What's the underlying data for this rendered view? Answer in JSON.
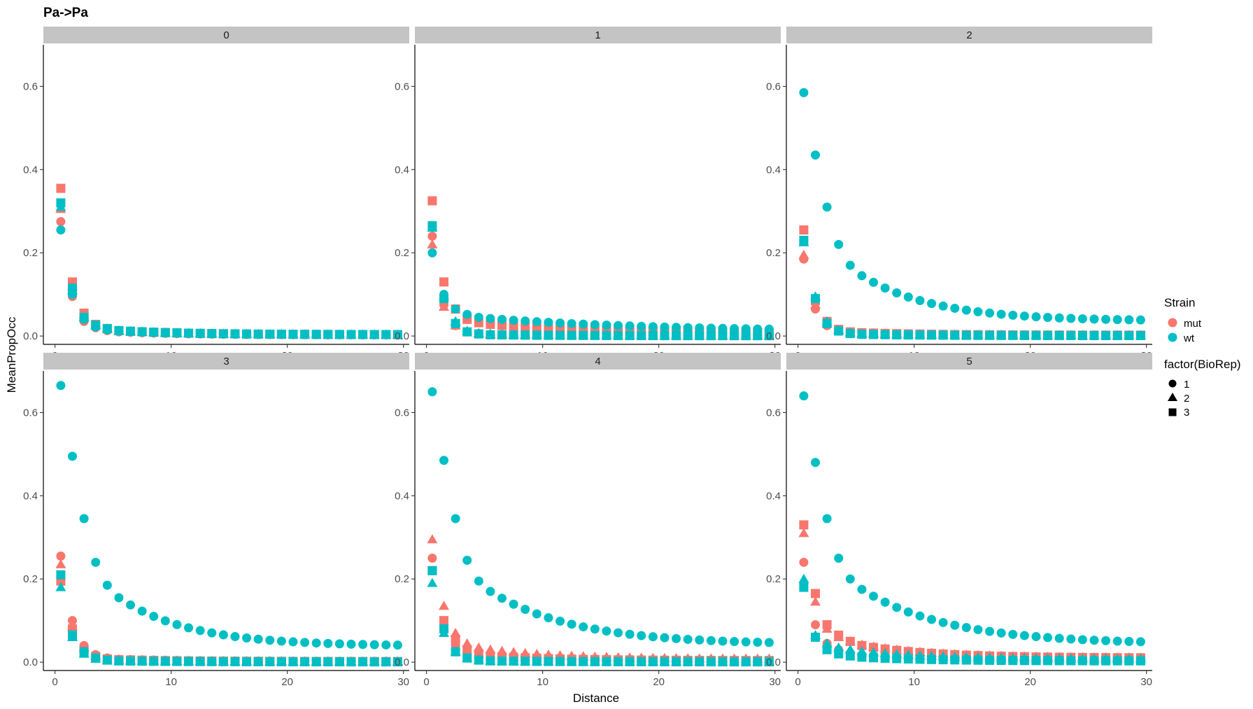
{
  "chart_data": {
    "type": "scatter",
    "title": "Pa->Pa",
    "xlabel": "Distance",
    "ylabel": "MeanPropOcc",
    "xlim": [
      -1,
      30.5
    ],
    "ylim": [
      -0.02,
      0.7
    ],
    "x_ticks": [
      0,
      10,
      20,
      30
    ],
    "y_ticks": [
      0.0,
      0.2,
      0.4,
      0.6
    ],
    "x_tick_labels": [
      "0",
      "10",
      "20",
      "30"
    ],
    "y_tick_labels": [
      "0.0",
      "0.2",
      "0.4",
      "0.6"
    ],
    "facet_layout": {
      "rows": 2,
      "cols": 3
    },
    "grid": false,
    "legend_position": "right",
    "colors": {
      "mut": "#F8766D",
      "wt": "#00BFC4"
    },
    "legends": {
      "color": {
        "title": "Strain",
        "entries": [
          "mut",
          "wt"
        ]
      },
      "shape": {
        "title": "factor(BioRep)",
        "entries": [
          "1",
          "2",
          "3"
        ],
        "shapes": [
          "circle",
          "triangle",
          "square"
        ]
      }
    },
    "x": [
      0.5,
      1.5,
      2.5,
      3.5,
      4.5,
      5.5,
      6.5,
      7.5,
      8.5,
      9.5,
      10.5,
      11.5,
      12.5,
      13.5,
      14.5,
      15.5,
      16.5,
      17.5,
      18.5,
      19.5,
      20.5,
      21.5,
      22.5,
      23.5,
      24.5,
      25.5,
      26.5,
      27.5,
      28.5,
      29.5
    ],
    "facets": [
      {
        "label": "0",
        "series": [
          {
            "strain": "wt",
            "biorep": "1",
            "head": [
              0.255,
              0.1,
              0.04,
              0.022,
              0.015,
              0.012
            ]
          },
          {
            "strain": "wt",
            "biorep": "2",
            "head": [
              0.31,
              0.11,
              0.045,
              0.025,
              0.018,
              0.013
            ]
          },
          {
            "strain": "wt",
            "biorep": "3",
            "head": [
              0.32,
              0.115,
              0.045,
              0.026,
              0.018,
              0.013
            ]
          },
          {
            "strain": "mut",
            "biorep": "1",
            "head": [
              0.275,
              0.095,
              0.035,
              0.02,
              0.013,
              0.01
            ]
          },
          {
            "strain": "mut",
            "biorep": "2",
            "head": [
              0.305,
              0.12,
              0.05,
              0.025,
              0.016,
              0.012
            ]
          },
          {
            "strain": "mut",
            "biorep": "3",
            "head": [
              0.355,
              0.13,
              0.055,
              0.028,
              0.018,
              0.013
            ]
          }
        ]
      },
      {
        "label": "1",
        "series": [
          {
            "strain": "wt",
            "biorep": "1",
            "head": [
              0.2,
              0.1,
              0.065,
              0.052,
              0.045,
              0.042
            ]
          },
          {
            "strain": "wt",
            "biorep": "2",
            "head": [
              0.26,
              0.095,
              0.035,
              0.012,
              0.006,
              0.004
            ]
          },
          {
            "strain": "wt",
            "biorep": "3",
            "head": [
              0.265,
              0.09,
              0.03,
              0.01,
              0.005,
              0.003
            ]
          },
          {
            "strain": "mut",
            "biorep": "1",
            "head": [
              0.24,
              0.075,
              0.025,
              0.01,
              0.006,
              0.004
            ]
          },
          {
            "strain": "mut",
            "biorep": "2",
            "head": [
              0.22,
              0.07,
              0.025,
              0.012,
              0.007,
              0.005
            ]
          },
          {
            "strain": "mut",
            "biorep": "3",
            "head": [
              0.325,
              0.13,
              0.065,
              0.04,
              0.032,
              0.028
            ]
          }
        ]
      },
      {
        "label": "2",
        "series": [
          {
            "strain": "wt",
            "biorep": "1",
            "head": [
              0.585,
              0.435,
              0.31,
              0.22,
              0.17,
              0.145
            ]
          },
          {
            "strain": "wt",
            "biorep": "2",
            "head": [
              0.225,
              0.095,
              0.035,
              0.015,
              0.008,
              0.005
            ]
          },
          {
            "strain": "wt",
            "biorep": "3",
            "head": [
              0.23,
              0.09,
              0.03,
              0.012,
              0.006,
              0.004
            ]
          },
          {
            "strain": "mut",
            "biorep": "1",
            "head": [
              0.185,
              0.065,
              0.025,
              0.012,
              0.008,
              0.006
            ]
          },
          {
            "strain": "mut",
            "biorep": "2",
            "head": [
              0.195,
              0.075,
              0.03,
              0.014,
              0.009,
              0.007
            ]
          },
          {
            "strain": "mut",
            "biorep": "3",
            "head": [
              0.255,
              0.085,
              0.035,
              0.016,
              0.01,
              0.008
            ]
          }
        ]
      },
      {
        "label": "3",
        "series": [
          {
            "strain": "wt",
            "biorep": "1",
            "head": [
              0.665,
              0.495,
              0.345,
              0.24,
              0.185,
              0.155
            ]
          },
          {
            "strain": "wt",
            "biorep": "2",
            "head": [
              0.18,
              0.06,
              0.02,
              0.008,
              0.004,
              0.003
            ]
          },
          {
            "strain": "wt",
            "biorep": "3",
            "head": [
              0.21,
              0.065,
              0.025,
              0.01,
              0.005,
              0.003
            ]
          },
          {
            "strain": "mut",
            "biorep": "1",
            "head": [
              0.255,
              0.1,
              0.04,
              0.018,
              0.01,
              0.007
            ]
          },
          {
            "strain": "mut",
            "biorep": "2",
            "head": [
              0.235,
              0.085,
              0.035,
              0.016,
              0.009,
              0.006
            ]
          },
          {
            "strain": "mut",
            "biorep": "3",
            "head": [
              0.195,
              0.08,
              0.03,
              0.014,
              0.008,
              0.006
            ]
          }
        ]
      },
      {
        "label": "4",
        "series": [
          {
            "strain": "wt",
            "biorep": "1",
            "head": [
              0.65,
              0.485,
              0.345,
              0.245,
              0.195,
              0.17
            ]
          },
          {
            "strain": "wt",
            "biorep": "2",
            "head": [
              0.19,
              0.07,
              0.025,
              0.01,
              0.005,
              0.003
            ]
          },
          {
            "strain": "wt",
            "biorep": "3",
            "head": [
              0.22,
              0.08,
              0.025,
              0.01,
              0.005,
              0.003
            ]
          },
          {
            "strain": "mut",
            "biorep": "1",
            "head": [
              0.25,
              0.09,
              0.04,
              0.02,
              0.013,
              0.009
            ]
          },
          {
            "strain": "mut",
            "biorep": "2",
            "head": [
              0.295,
              0.135,
              0.07,
              0.045,
              0.035,
              0.03
            ]
          },
          {
            "strain": "mut",
            "biorep": "3",
            "head": [
              0.22,
              0.1,
              0.055,
              0.03,
              0.02,
              0.015
            ]
          }
        ]
      },
      {
        "label": "5",
        "series": [
          {
            "strain": "wt",
            "biorep": "1",
            "head": [
              0.64,
              0.48,
              0.345,
              0.25,
              0.2,
              0.175
            ]
          },
          {
            "strain": "wt",
            "biorep": "2",
            "head": [
              0.2,
              0.065,
              0.045,
              0.035,
              0.03,
              0.026
            ]
          },
          {
            "strain": "wt",
            "biorep": "3",
            "head": [
              0.18,
              0.06,
              0.03,
              0.02,
              0.015,
              0.012
            ]
          },
          {
            "strain": "mut",
            "biorep": "1",
            "head": [
              0.24,
              0.09,
              0.045,
              0.03,
              0.022,
              0.018
            ]
          },
          {
            "strain": "mut",
            "biorep": "2",
            "head": [
              0.31,
              0.145,
              0.08,
              0.06,
              0.05,
              0.042
            ]
          },
          {
            "strain": "mut",
            "biorep": "3",
            "head": [
              0.33,
              0.165,
              0.09,
              0.065,
              0.05,
              0.04
            ]
          }
        ]
      }
    ]
  }
}
